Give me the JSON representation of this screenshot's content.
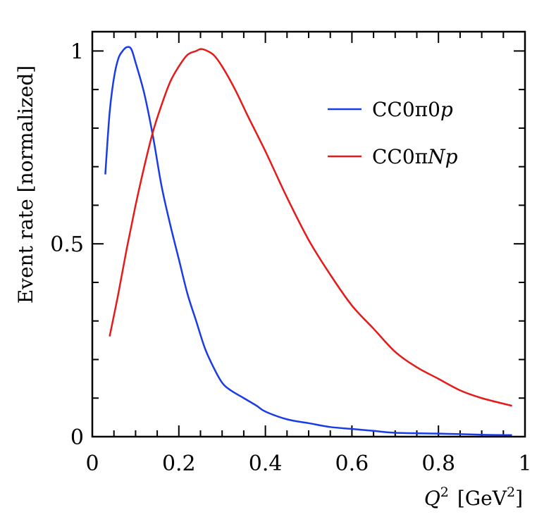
{
  "chart_data": {
    "type": "line",
    "title": "",
    "xlabel": "Q",
    "xlabel_superscript": "2",
    "xlabel_unit_prefix": "[GeV",
    "xlabel_unit_superscript": "2",
    "xlabel_unit_suffix": "]",
    "ylabel": "Event rate [normalized]",
    "xlim": [
      0,
      1
    ],
    "ylim": [
      0,
      1.05
    ],
    "x_ticks": [
      0,
      0.2,
      0.4,
      0.6,
      0.8,
      1
    ],
    "x_tick_labels": [
      "0",
      "0.2",
      "0.4",
      "0.6",
      "0.8",
      "1"
    ],
    "y_ticks": [
      0,
      0.5,
      1
    ],
    "y_tick_labels": [
      "0",
      "0.5",
      "1"
    ],
    "x_minor_step": 0.05,
    "y_minor_step": 0.1,
    "grid": false,
    "legend_position": "top-right",
    "series": [
      {
        "name": "CC0π0p",
        "legend_main": "CC0π0",
        "legend_italic": "p",
        "color": "#1a3ce6",
        "x": [
          0.03,
          0.04,
          0.05,
          0.06,
          0.07,
          0.08,
          0.09,
          0.1,
          0.12,
          0.14,
          0.16,
          0.18,
          0.2,
          0.22,
          0.24,
          0.26,
          0.28,
          0.3,
          0.32,
          0.35,
          0.38,
          0.4,
          0.45,
          0.5,
          0.55,
          0.6,
          0.65,
          0.7,
          0.8,
          0.9,
          0.97
        ],
        "y": [
          0.68,
          0.84,
          0.93,
          0.98,
          1.0,
          1.01,
          1.005,
          0.97,
          0.89,
          0.78,
          0.65,
          0.55,
          0.46,
          0.37,
          0.3,
          0.23,
          0.18,
          0.14,
          0.12,
          0.1,
          0.08,
          0.065,
          0.045,
          0.035,
          0.025,
          0.02,
          0.015,
          0.01,
          0.008,
          0.005,
          0.004
        ]
      },
      {
        "name": "CC0πNp",
        "legend_main": "CC0π",
        "legend_italic": "Np",
        "color": "#e61a1a",
        "x": [
          0.04,
          0.06,
          0.08,
          0.1,
          0.12,
          0.14,
          0.16,
          0.18,
          0.2,
          0.22,
          0.24,
          0.25,
          0.26,
          0.28,
          0.3,
          0.33,
          0.36,
          0.4,
          0.45,
          0.5,
          0.55,
          0.6,
          0.65,
          0.7,
          0.75,
          0.8,
          0.85,
          0.9,
          0.97
        ],
        "y": [
          0.26,
          0.37,
          0.49,
          0.6,
          0.7,
          0.79,
          0.86,
          0.92,
          0.96,
          0.99,
          1.0,
          1.005,
          1.003,
          0.99,
          0.96,
          0.9,
          0.83,
          0.74,
          0.62,
          0.51,
          0.42,
          0.34,
          0.28,
          0.22,
          0.18,
          0.15,
          0.12,
          0.1,
          0.08
        ]
      }
    ]
  }
}
